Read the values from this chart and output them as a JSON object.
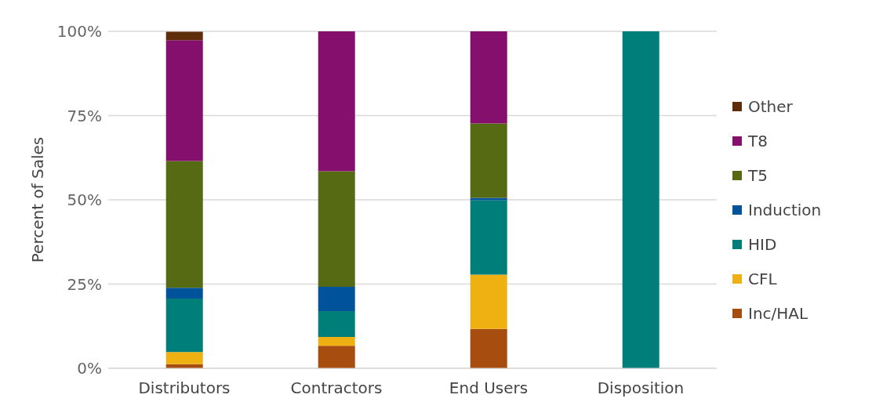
{
  "chart_data": {
    "type": "bar",
    "stacked": true,
    "ylabel": "Percent of Sales",
    "categories": [
      "Distributors",
      "Contractors",
      "End Users",
      "Disposition"
    ],
    "series": [
      {
        "name": "Inc/HAL",
        "color": "#a84d10",
        "values": [
          1.2,
          6.7,
          11.7,
          0
        ]
      },
      {
        "name": "CFL",
        "color": "#eeb111",
        "values": [
          3.6,
          2.6,
          16.1,
          0
        ]
      },
      {
        "name": "HID",
        "color": "#007f7a",
        "values": [
          15.9,
          7.7,
          22.1,
          100
        ]
      },
      {
        "name": "Induction",
        "color": "#00529b",
        "values": [
          3.2,
          7.2,
          0.7,
          0
        ]
      },
      {
        "name": "T5",
        "color": "#566a14",
        "values": [
          37.6,
          34.3,
          22.1,
          0
        ]
      },
      {
        "name": "T8",
        "color": "#840f6d",
        "values": [
          35.9,
          41.5,
          27.3,
          0
        ]
      },
      {
        "name": "Other",
        "color": "#602d0a",
        "values": [
          2.5,
          0,
          0,
          0
        ]
      }
    ],
    "ylim": [
      0,
      100
    ],
    "yticks": [
      {
        "value": 0,
        "label": "0%"
      },
      {
        "value": 25,
        "label": "25%"
      },
      {
        "value": 50,
        "label": "50%"
      },
      {
        "value": 75,
        "label": "75%"
      },
      {
        "value": 100,
        "label": "100%"
      }
    ],
    "grid": "y",
    "legend": "right"
  }
}
